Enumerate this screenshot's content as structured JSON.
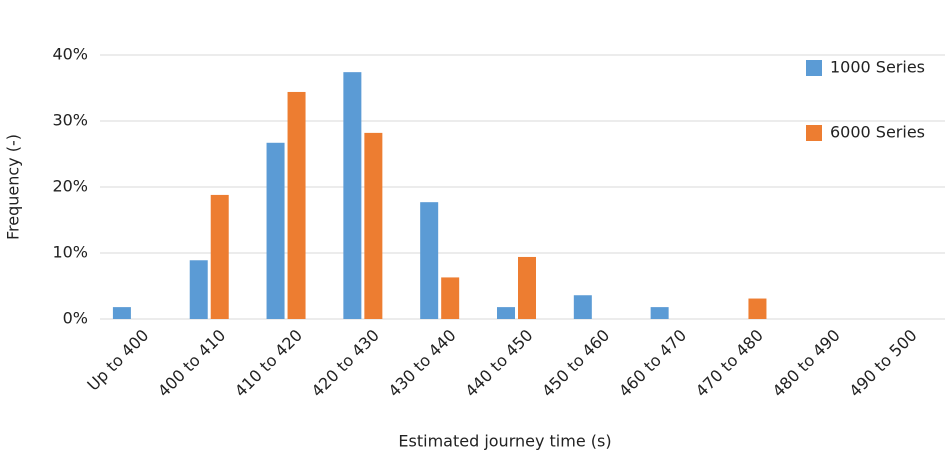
{
  "chart_data": {
    "type": "bar",
    "x_label": "Estimated journey time (s)",
    "y_label": "Frequency (-)",
    "categories": [
      "Up to 400",
      "400 to 410",
      "410 to 420",
      "420 to 430",
      "430 to 440",
      "440 to 450",
      "450 to 460",
      "460 to 470",
      "470 to 480",
      "480 to 490",
      "490 to 500"
    ],
    "series": [
      {
        "name": "1000 Series",
        "color": "#5b9bd5",
        "values": [
          1.8,
          8.9,
          26.7,
          37.4,
          17.7,
          1.8,
          3.6,
          1.8,
          0,
          0,
          0
        ]
      },
      {
        "name": "6000 Series",
        "color": "#ed7d31",
        "values": [
          0,
          18.8,
          34.4,
          28.2,
          6.3,
          9.4,
          0,
          0,
          3.1,
          0,
          0
        ]
      }
    ],
    "ylim": [
      0,
      40
    ],
    "yticks": [
      {
        "value": 0,
        "label": "0%"
      },
      {
        "value": 10,
        "label": "10%"
      },
      {
        "value": 20,
        "label": "20%"
      },
      {
        "value": 30,
        "label": "30%"
      },
      {
        "value": 40,
        "label": "40%"
      }
    ],
    "grid": true,
    "legend": "top-right"
  }
}
